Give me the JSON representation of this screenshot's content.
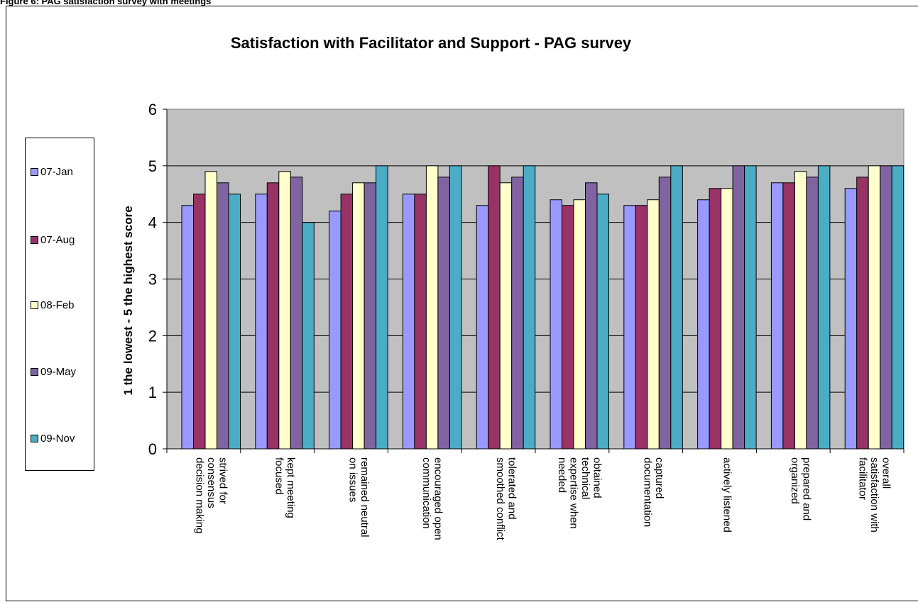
{
  "figure_caption": "Figure 6: PAG satisfaction survey with meetings",
  "chart_data": {
    "type": "bar",
    "title": "Satisfaction with Facilitator and Support - PAG survey",
    "ylabel": "1 the lowest - 5 the highest score",
    "xlabel": "",
    "ylim": [
      0,
      6
    ],
    "yticks": [
      0,
      1,
      2,
      3,
      4,
      5,
      6
    ],
    "grid": true,
    "plot_background": "#c0c0c0",
    "legend_position": "left",
    "categories": [
      "strived for consensus decision making",
      "kept meeting focused",
      "remained neutral on issues",
      "encouraged open communication",
      "tolerated and smoothed conflict",
      "obtained technical expertise when needed",
      "captured documentation",
      "actively listened",
      "prepared and organized",
      "overall satisfaction with facilitator"
    ],
    "category_label_lines": [
      [
        "strived for",
        "consensus",
        "decision making"
      ],
      [
        "kept meeting",
        "focused"
      ],
      [
        "remained neutral",
        "on issues"
      ],
      [
        "encouraged open",
        "communication"
      ],
      [
        "tolerated and",
        "smoothed conflict"
      ],
      [
        "obtained",
        "technical",
        "expertise when",
        "needed"
      ],
      [
        "captured",
        "documentation"
      ],
      [
        "actively listened"
      ],
      [
        "prepared and",
        "organized"
      ],
      [
        "overall",
        "satisfaction with",
        "facilitator"
      ]
    ],
    "series": [
      {
        "name": "07-Jan",
        "color": "#9999ff",
        "values": [
          4.3,
          4.5,
          4.2,
          4.5,
          4.3,
          4.4,
          4.3,
          4.4,
          4.7,
          4.6
        ]
      },
      {
        "name": "07-Aug",
        "color": "#993366",
        "values": [
          4.5,
          4.7,
          4.5,
          4.5,
          5.0,
          4.3,
          4.3,
          4.6,
          4.7,
          4.8
        ]
      },
      {
        "name": "08-Feb",
        "color": "#ffffcc",
        "values": [
          4.9,
          4.9,
          4.7,
          5.0,
          4.7,
          4.4,
          4.4,
          4.6,
          4.9,
          5.0
        ]
      },
      {
        "name": "09-May",
        "color": "#8064a2",
        "values": [
          4.7,
          4.8,
          4.7,
          4.8,
          4.8,
          4.7,
          4.8,
          5.0,
          4.8,
          5.0
        ]
      },
      {
        "name": "09-Nov",
        "color": "#4bacc6",
        "values": [
          4.5,
          4.0,
          5.0,
          5.0,
          5.0,
          4.5,
          5.0,
          5.0,
          5.0,
          5.0
        ]
      }
    ]
  }
}
